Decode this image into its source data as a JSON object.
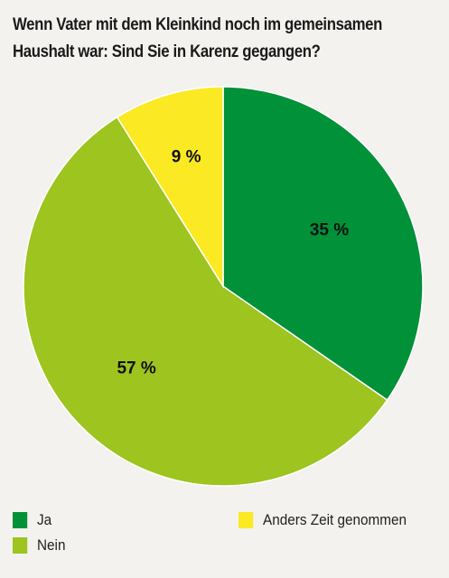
{
  "chart_data": {
    "type": "pie",
    "title": "Wenn Vater mit dem Kleinkind noch im gemeinsamen Haushalt war: Sind Sie in Karenz gegangen?",
    "slices": [
      {
        "name": "Ja",
        "value": 35,
        "label": "35 %",
        "color": "#009139"
      },
      {
        "name": "Nein",
        "value": 57,
        "label": "57 %",
        "color": "#9dc41f"
      },
      {
        "name": "Anders Zeit genommen",
        "value": 9,
        "label": "9 %",
        "color": "#fbe923"
      }
    ],
    "legend_placement": "bottom"
  }
}
